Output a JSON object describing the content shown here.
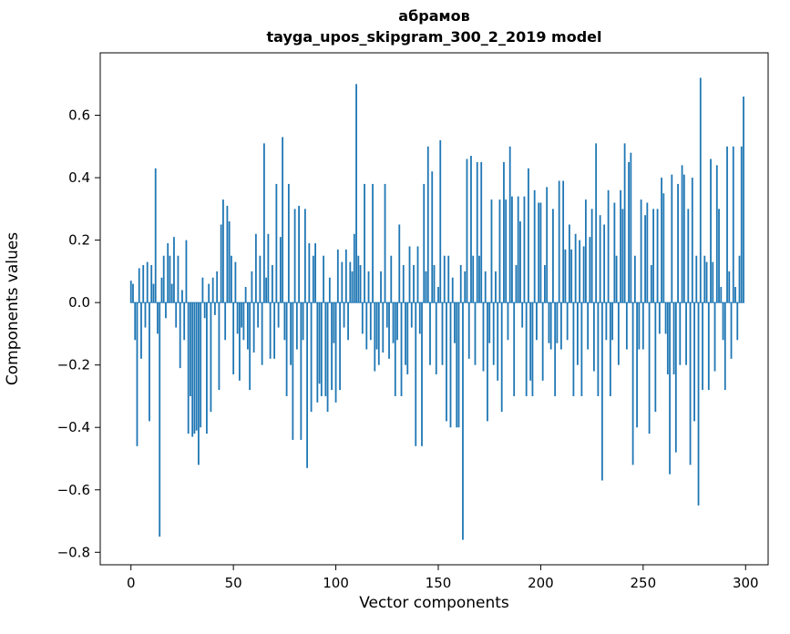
{
  "figure": {
    "title_line1": "абрамов",
    "title_line2": "tayga_upos_skipgram_300_2_2019 model",
    "xlabel": "Vector components",
    "ylabel": "Components values"
  },
  "chart_data": {
    "type": "bar",
    "title": "абрамов — tayga_upos_skipgram_300_2_2019 model",
    "xlabel": "Vector components",
    "ylabel": "Components values",
    "bar_color": "#1f77b4",
    "axis_color": "#000000",
    "grid": false,
    "legend": false,
    "xlim": [
      -15,
      311
    ],
    "ylim": [
      -0.84,
      0.8
    ],
    "xtick_values": [
      0,
      50,
      100,
      150,
      200,
      250,
      300
    ],
    "xtick_labels": [
      "0",
      "50",
      "100",
      "150",
      "200",
      "250",
      "300"
    ],
    "ytick_values": [
      -0.8,
      -0.6,
      -0.4,
      -0.2,
      0.0,
      0.2,
      0.4,
      0.6
    ],
    "ytick_labels": [
      "−0.8",
      "−0.6",
      "−0.4",
      "−0.2",
      "0.0",
      "0.2",
      "0.4",
      "0.6"
    ],
    "x_start": 0,
    "n_components": 300,
    "values": [
      0.07,
      0.06,
      -0.12,
      -0.46,
      0.11,
      -0.18,
      0.12,
      -0.08,
      0.13,
      -0.38,
      0.12,
      0.06,
      0.43,
      -0.1,
      -0.75,
      0.08,
      0.15,
      -0.05,
      0.19,
      0.15,
      0.06,
      0.21,
      -0.08,
      0.15,
      -0.21,
      0.04,
      -0.12,
      0.2,
      -0.42,
      -0.3,
      -0.43,
      -0.42,
      -0.41,
      -0.52,
      -0.4,
      0.08,
      -0.05,
      -0.42,
      0.06,
      -0.35,
      0.08,
      -0.04,
      0.1,
      -0.28,
      0.25,
      0.33,
      -0.12,
      0.31,
      0.26,
      0.15,
      -0.23,
      0.13,
      -0.1,
      -0.25,
      -0.08,
      -0.12,
      0.05,
      -0.15,
      -0.28,
      0.1,
      -0.16,
      0.22,
      -0.08,
      0.15,
      -0.2,
      0.51,
      0.08,
      0.22,
      -0.18,
      0.12,
      -0.18,
      0.38,
      -0.08,
      0.21,
      0.53,
      -0.12,
      -0.3,
      0.38,
      -0.2,
      -0.44,
      0.3,
      -0.15,
      0.31,
      -0.44,
      -0.12,
      0.3,
      -0.53,
      0.19,
      -0.35,
      0.15,
      0.19,
      -0.32,
      -0.26,
      -0.3,
      0.15,
      -0.3,
      -0.35,
      0.08,
      -0.28,
      -0.13,
      -0.32,
      0.17,
      -0.28,
      0.13,
      -0.08,
      0.17,
      -0.12,
      0.13,
      0.1,
      0.22,
      0.7,
      0.15,
      0.12,
      -0.1,
      0.38,
      -0.15,
      0.1,
      -0.12,
      0.38,
      -0.22,
      -0.15,
      -0.2,
      0.1,
      -0.16,
      0.38,
      -0.08,
      -0.18,
      0.15,
      -0.13,
      -0.3,
      -0.12,
      0.25,
      -0.3,
      0.12,
      -0.2,
      -0.23,
      0.18,
      -0.08,
      0.12,
      -0.46,
      0.18,
      -0.1,
      -0.46,
      0.38,
      0.1,
      0.5,
      -0.2,
      0.42,
      0.12,
      -0.23,
      0.05,
      0.52,
      -0.2,
      0.15,
      -0.38,
      0.15,
      -0.4,
      0.08,
      -0.13,
      -0.4,
      -0.4,
      0.12,
      -0.76,
      0.1,
      0.46,
      -0.18,
      0.47,
      0.15,
      -0.2,
      0.45,
      0.15,
      0.45,
      -0.22,
      0.1,
      -0.38,
      -0.13,
      0.33,
      -0.2,
      0.1,
      -0.25,
      0.33,
      -0.35,
      0.45,
      0.33,
      -0.12,
      0.5,
      0.34,
      -0.3,
      0.12,
      0.34,
      0.26,
      -0.08,
      0.34,
      -0.3,
      0.43,
      -0.25,
      -0.3,
      0.36,
      -0.12,
      0.32,
      0.32,
      -0.25,
      0.12,
      0.37,
      -0.13,
      -0.15,
      0.3,
      -0.3,
      -0.13,
      0.39,
      -0.15,
      0.39,
      0.17,
      -0.12,
      0.25,
      0.17,
      -0.3,
      0.22,
      -0.2,
      0.2,
      -0.3,
      0.18,
      0.33,
      -0.15,
      0.21,
      0.3,
      -0.22,
      0.51,
      -0.3,
      0.28,
      -0.57,
      0.25,
      -0.12,
      0.36,
      -0.3,
      -0.12,
      0.32,
      0.15,
      -0.2,
      0.36,
      0.3,
      0.51,
      -0.15,
      0.45,
      0.48,
      -0.52,
      0.15,
      -0.4,
      -0.15,
      0.33,
      -0.15,
      0.28,
      0.32,
      -0.42,
      0.12,
      0.3,
      -0.35,
      0.3,
      -0.1,
      0.4,
      0.35,
      -0.1,
      -0.23,
      -0.55,
      0.41,
      -0.23,
      -0.48,
      0.38,
      -0.2,
      0.44,
      0.41,
      -0.2,
      0.3,
      -0.52,
      0.4,
      -0.38,
      0.15,
      -0.65,
      0.72,
      -0.28,
      0.15,
      0.13,
      -0.28,
      0.46,
      0.13,
      -0.22,
      0.44,
      0.3,
      0.05,
      -0.12,
      -0.28,
      0.5,
      0.1,
      -0.18,
      0.5,
      0.05,
      -0.12,
      0.15,
      0.5,
      0.66
    ]
  }
}
